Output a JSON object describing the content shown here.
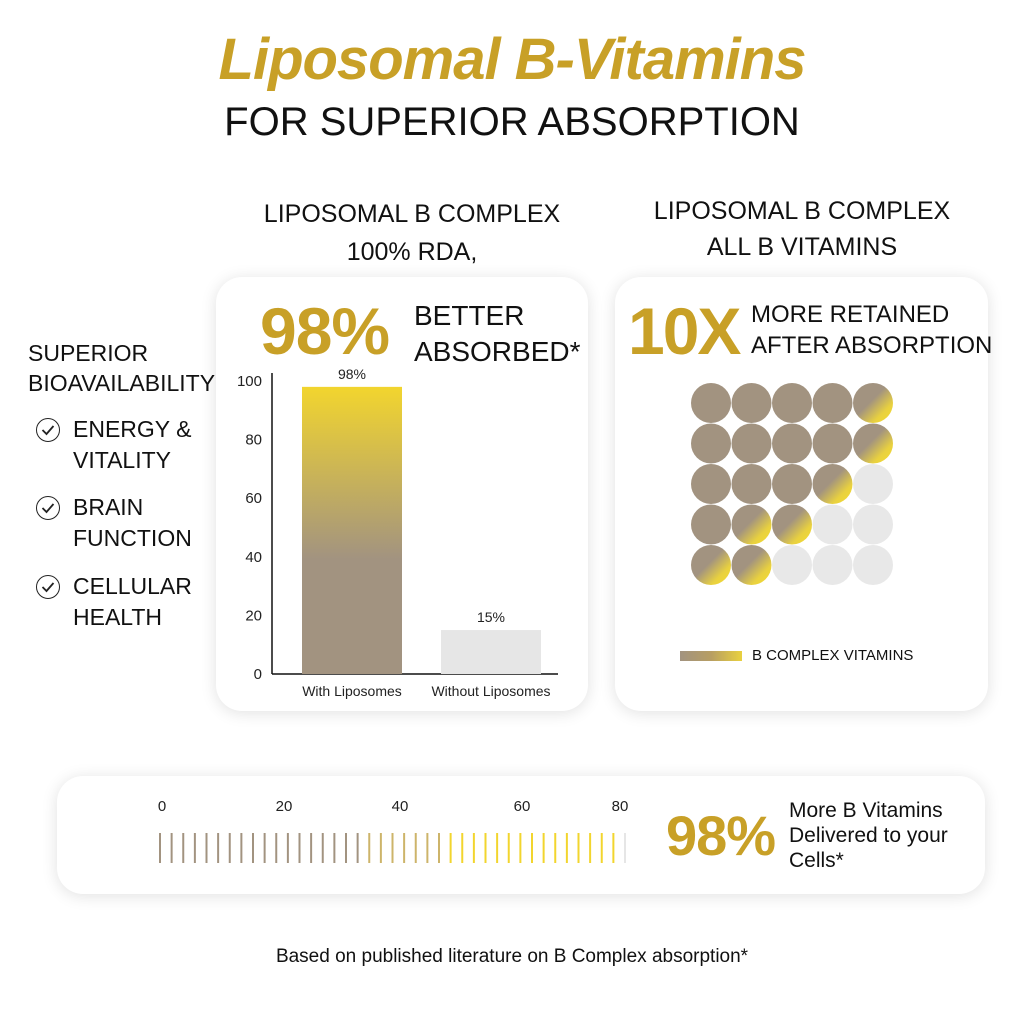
{
  "header": {
    "title": "Liposomal B-Vitamins",
    "subtitle": "FOR SUPERIOR ABSORPTION"
  },
  "sidebar": {
    "heading_line1": "SUPERIOR",
    "heading_line2": "BIOAVAILABILITY",
    "benefits": [
      {
        "line1": "ENERGY &",
        "line2": "VITALITY"
      },
      {
        "line1": "BRAIN",
        "line2": "FUNCTION"
      },
      {
        "line1": "CELLULAR",
        "line2": "HEALTH"
      }
    ]
  },
  "left_panel": {
    "heading_line1": "LIPOSOMAL B COMPLEX",
    "heading_line2": "100% RDA,",
    "big_stat": "98%",
    "stat_label_line1": "BETTER",
    "stat_label_line2": "ABSORBED*"
  },
  "right_panel": {
    "heading_line1": "LIPOSOMAL B COMPLEX",
    "heading_line2": "ALL B VITAMINS",
    "big_stat": "10X",
    "stat_label_line1": "MORE RETAINED",
    "stat_label_line2": "AFTER ABSORPTION",
    "legend_label": "B COMPLEX VITAMINS",
    "dot_grid": {
      "rows": 5,
      "cols": 5,
      "cells": [
        [
          "taupe",
          "taupe",
          "taupe",
          "taupe",
          "mix"
        ],
        [
          "taupe",
          "taupe",
          "taupe",
          "taupe",
          "mix"
        ],
        [
          "taupe",
          "taupe",
          "taupe",
          "mix",
          "empty"
        ],
        [
          "taupe",
          "mix",
          "mix",
          "empty",
          "empty"
        ],
        [
          "mix",
          "mix",
          "empty",
          "empty",
          "empty"
        ]
      ]
    }
  },
  "bottom_panel": {
    "scale_ticks": [
      "0",
      "20",
      "40",
      "60",
      "80"
    ],
    "scale_fill_level_pct": 98,
    "big_stat": "98%",
    "stat_line1": "More B Vitamins",
    "stat_line2": "Delivered to your",
    "stat_line3": "Cells*"
  },
  "footnote": "Based  on published literature on B Complex absorption*",
  "colors": {
    "gold": "#c8a027",
    "taupe": "#a29380",
    "yellow": "#f2d52e",
    "light_grey": "#e6e6e6"
  },
  "chart_data": {
    "type": "bar",
    "categories": [
      "With Liposomes",
      "Without Liposomes"
    ],
    "values": [
      98,
      15
    ],
    "data_labels": [
      "98%",
      "15%"
    ],
    "yticks": [
      "0",
      "20",
      "40",
      "60",
      "80",
      "100"
    ],
    "ylim": [
      0,
      100
    ]
  }
}
